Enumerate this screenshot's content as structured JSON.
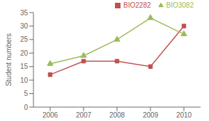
{
  "chart_data": {
    "type": "line",
    "x": [
      2006,
      2007,
      2008,
      2009,
      2010
    ],
    "series": [
      {
        "name": "BIO2282",
        "color": "#C0504D",
        "values": [
          12,
          17,
          17,
          15,
          30
        ],
        "marker": "square"
      },
      {
        "name": "BIO3082",
        "color": "#9BBB59",
        "values": [
          16,
          19,
          25,
          33,
          27
        ],
        "marker": "triangle"
      }
    ],
    "ylabel": "Student numbers",
    "xlim": [
      2005.5,
      2010.5
    ],
    "xticks": [
      2006,
      2007,
      2008,
      2009,
      2010
    ],
    "ylim": [
      0,
      35
    ],
    "yticks": [
      0,
      5,
      10,
      15,
      20,
      25,
      30,
      35
    ],
    "grid": false,
    "legend": "upper right"
  }
}
